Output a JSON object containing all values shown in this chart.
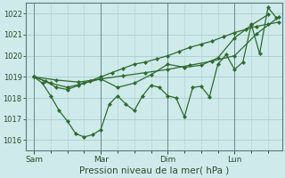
{
  "background_color": "#ceeaeb",
  "grid_color": "#b0d0d0",
  "line_color": "#2d6b2d",
  "marker_color": "#2d6b2d",
  "xlabel": "Pression niveau de la mer( hPa )",
  "ylim": [
    1015.5,
    1022.5
  ],
  "yticks": [
    1016,
    1017,
    1018,
    1019,
    1020,
    1021,
    1022
  ],
  "xtick_major_positions": [
    0,
    24,
    48,
    72
  ],
  "xtick_major_labels": [
    "Sam",
    "Mar",
    "Dim",
    "Lun"
  ],
  "xlim": [
    -3,
    89
  ],
  "series_A": {
    "x": [
      0,
      4,
      8,
      12,
      16,
      20,
      24,
      28,
      32,
      36,
      40,
      44,
      48,
      52,
      56,
      60,
      64,
      68,
      72,
      76,
      80,
      84,
      88
    ],
    "y": [
      1019.0,
      1018.8,
      1018.5,
      1018.4,
      1018.6,
      1018.8,
      1019.0,
      1019.2,
      1019.4,
      1019.6,
      1019.7,
      1019.85,
      1020.0,
      1020.2,
      1020.4,
      1020.55,
      1020.7,
      1020.9,
      1021.1,
      1021.25,
      1021.4,
      1021.5,
      1021.6
    ]
  },
  "series_B": {
    "x": [
      0,
      3,
      6,
      9,
      12,
      15,
      18,
      21,
      24,
      27,
      30,
      33,
      36,
      39,
      42,
      45,
      48,
      51,
      54,
      57,
      60,
      63,
      66,
      69,
      72,
      75,
      78,
      81,
      84,
      87
    ],
    "y": [
      1019.0,
      1018.7,
      1018.1,
      1017.4,
      1016.9,
      1016.3,
      1016.15,
      1016.25,
      1016.5,
      1017.7,
      1018.1,
      1017.7,
      1017.4,
      1018.1,
      1018.6,
      1018.5,
      1018.1,
      1018.0,
      1017.1,
      1018.5,
      1018.55,
      1018.05,
      1019.6,
      1020.05,
      1019.35,
      1019.7,
      1021.5,
      1020.1,
      1022.3,
      1021.8
    ]
  },
  "series_C": {
    "x": [
      0,
      6,
      12,
      18,
      24,
      30,
      36,
      42,
      48,
      54,
      60,
      66,
      72,
      78,
      84
    ],
    "y": [
      1019.0,
      1018.7,
      1018.5,
      1018.7,
      1018.9,
      1018.5,
      1018.7,
      1019.1,
      1019.6,
      1019.45,
      1019.55,
      1019.9,
      1020.85,
      1021.45,
      1021.95
    ]
  },
  "series_D": {
    "x": [
      0,
      8,
      16,
      24,
      32,
      40,
      48,
      56,
      64,
      72,
      80,
      88
    ],
    "y": [
      1019.0,
      1018.85,
      1018.75,
      1018.9,
      1019.05,
      1019.2,
      1019.35,
      1019.55,
      1019.75,
      1020.0,
      1021.05,
      1021.85
    ]
  }
}
